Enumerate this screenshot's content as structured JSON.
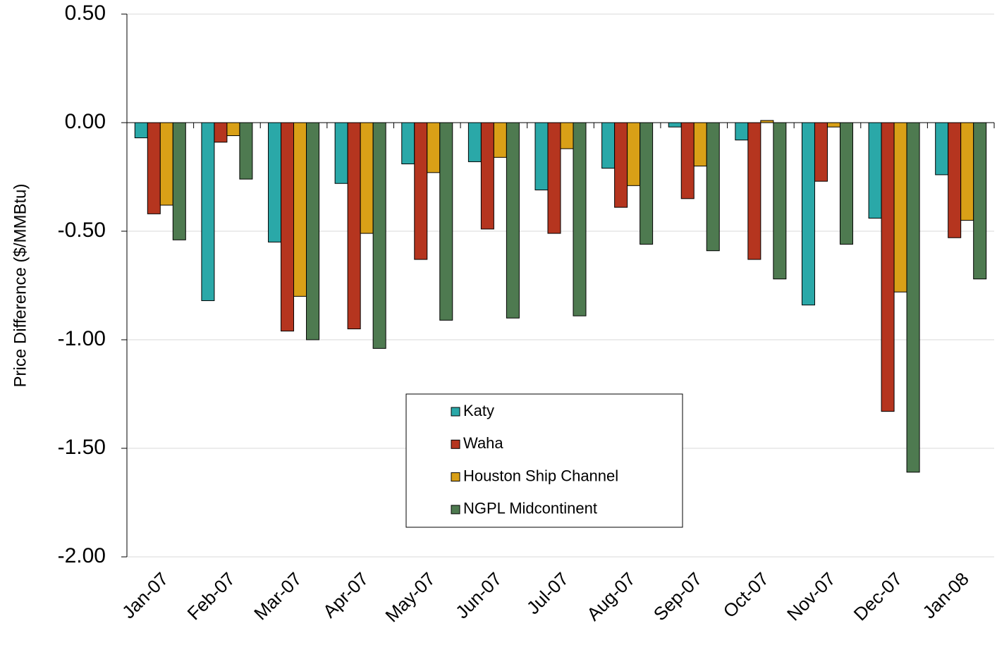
{
  "chart_data": {
    "type": "bar",
    "y_label": "Price Difference  ($/MMBtu)",
    "categories": [
      "Jan-07",
      "Feb-07",
      "Mar-07",
      "Apr-07",
      "May-07",
      "Jun-07",
      "Jul-07",
      "Aug-07",
      "Sep-07",
      "Oct-07",
      "Nov-07",
      "Dec-07",
      "Jan-08"
    ],
    "series": [
      {
        "name": "Katy",
        "color": "#2aa8a8",
        "values": [
          -0.07,
          -0.82,
          -0.55,
          -0.28,
          -0.19,
          -0.18,
          -0.31,
          -0.21,
          -0.02,
          -0.08,
          -0.84,
          -0.44,
          -0.24
        ]
      },
      {
        "name": "Waha",
        "color": "#b5351f",
        "values": [
          -0.42,
          -0.09,
          -0.96,
          -0.95,
          -0.63,
          -0.49,
          -0.51,
          -0.39,
          -0.35,
          -0.63,
          -0.27,
          -1.33,
          -0.53
        ]
      },
      {
        "name": "Houston Ship Channel",
        "color": "#d9a017",
        "values": [
          -0.38,
          -0.06,
          -0.8,
          -0.51,
          -0.23,
          -0.16,
          -0.12,
          -0.29,
          -0.2,
          0.01,
          -0.02,
          -0.78,
          -0.45
        ]
      },
      {
        "name": "NGPL Midcontinent",
        "color": "#4e7a50",
        "values": [
          -0.54,
          -0.26,
          -1.0,
          -1.04,
          -0.91,
          -0.9,
          -0.89,
          -0.56,
          -0.59,
          -0.72,
          -0.56,
          -1.61,
          -0.72
        ]
      }
    ],
    "ylim": [
      -2,
      0.5
    ],
    "yticks": [
      {
        "value": -2,
        "label": "-2.00"
      },
      {
        "value": -1.5,
        "label": "-1.50"
      },
      {
        "value": -1,
        "label": "-1.00"
      },
      {
        "value": -0.5,
        "label": "-0.50"
      },
      {
        "value": 0,
        "label": "0.00"
      },
      {
        "value": 0.5,
        "label": "0.50"
      }
    ],
    "grid": true
  }
}
